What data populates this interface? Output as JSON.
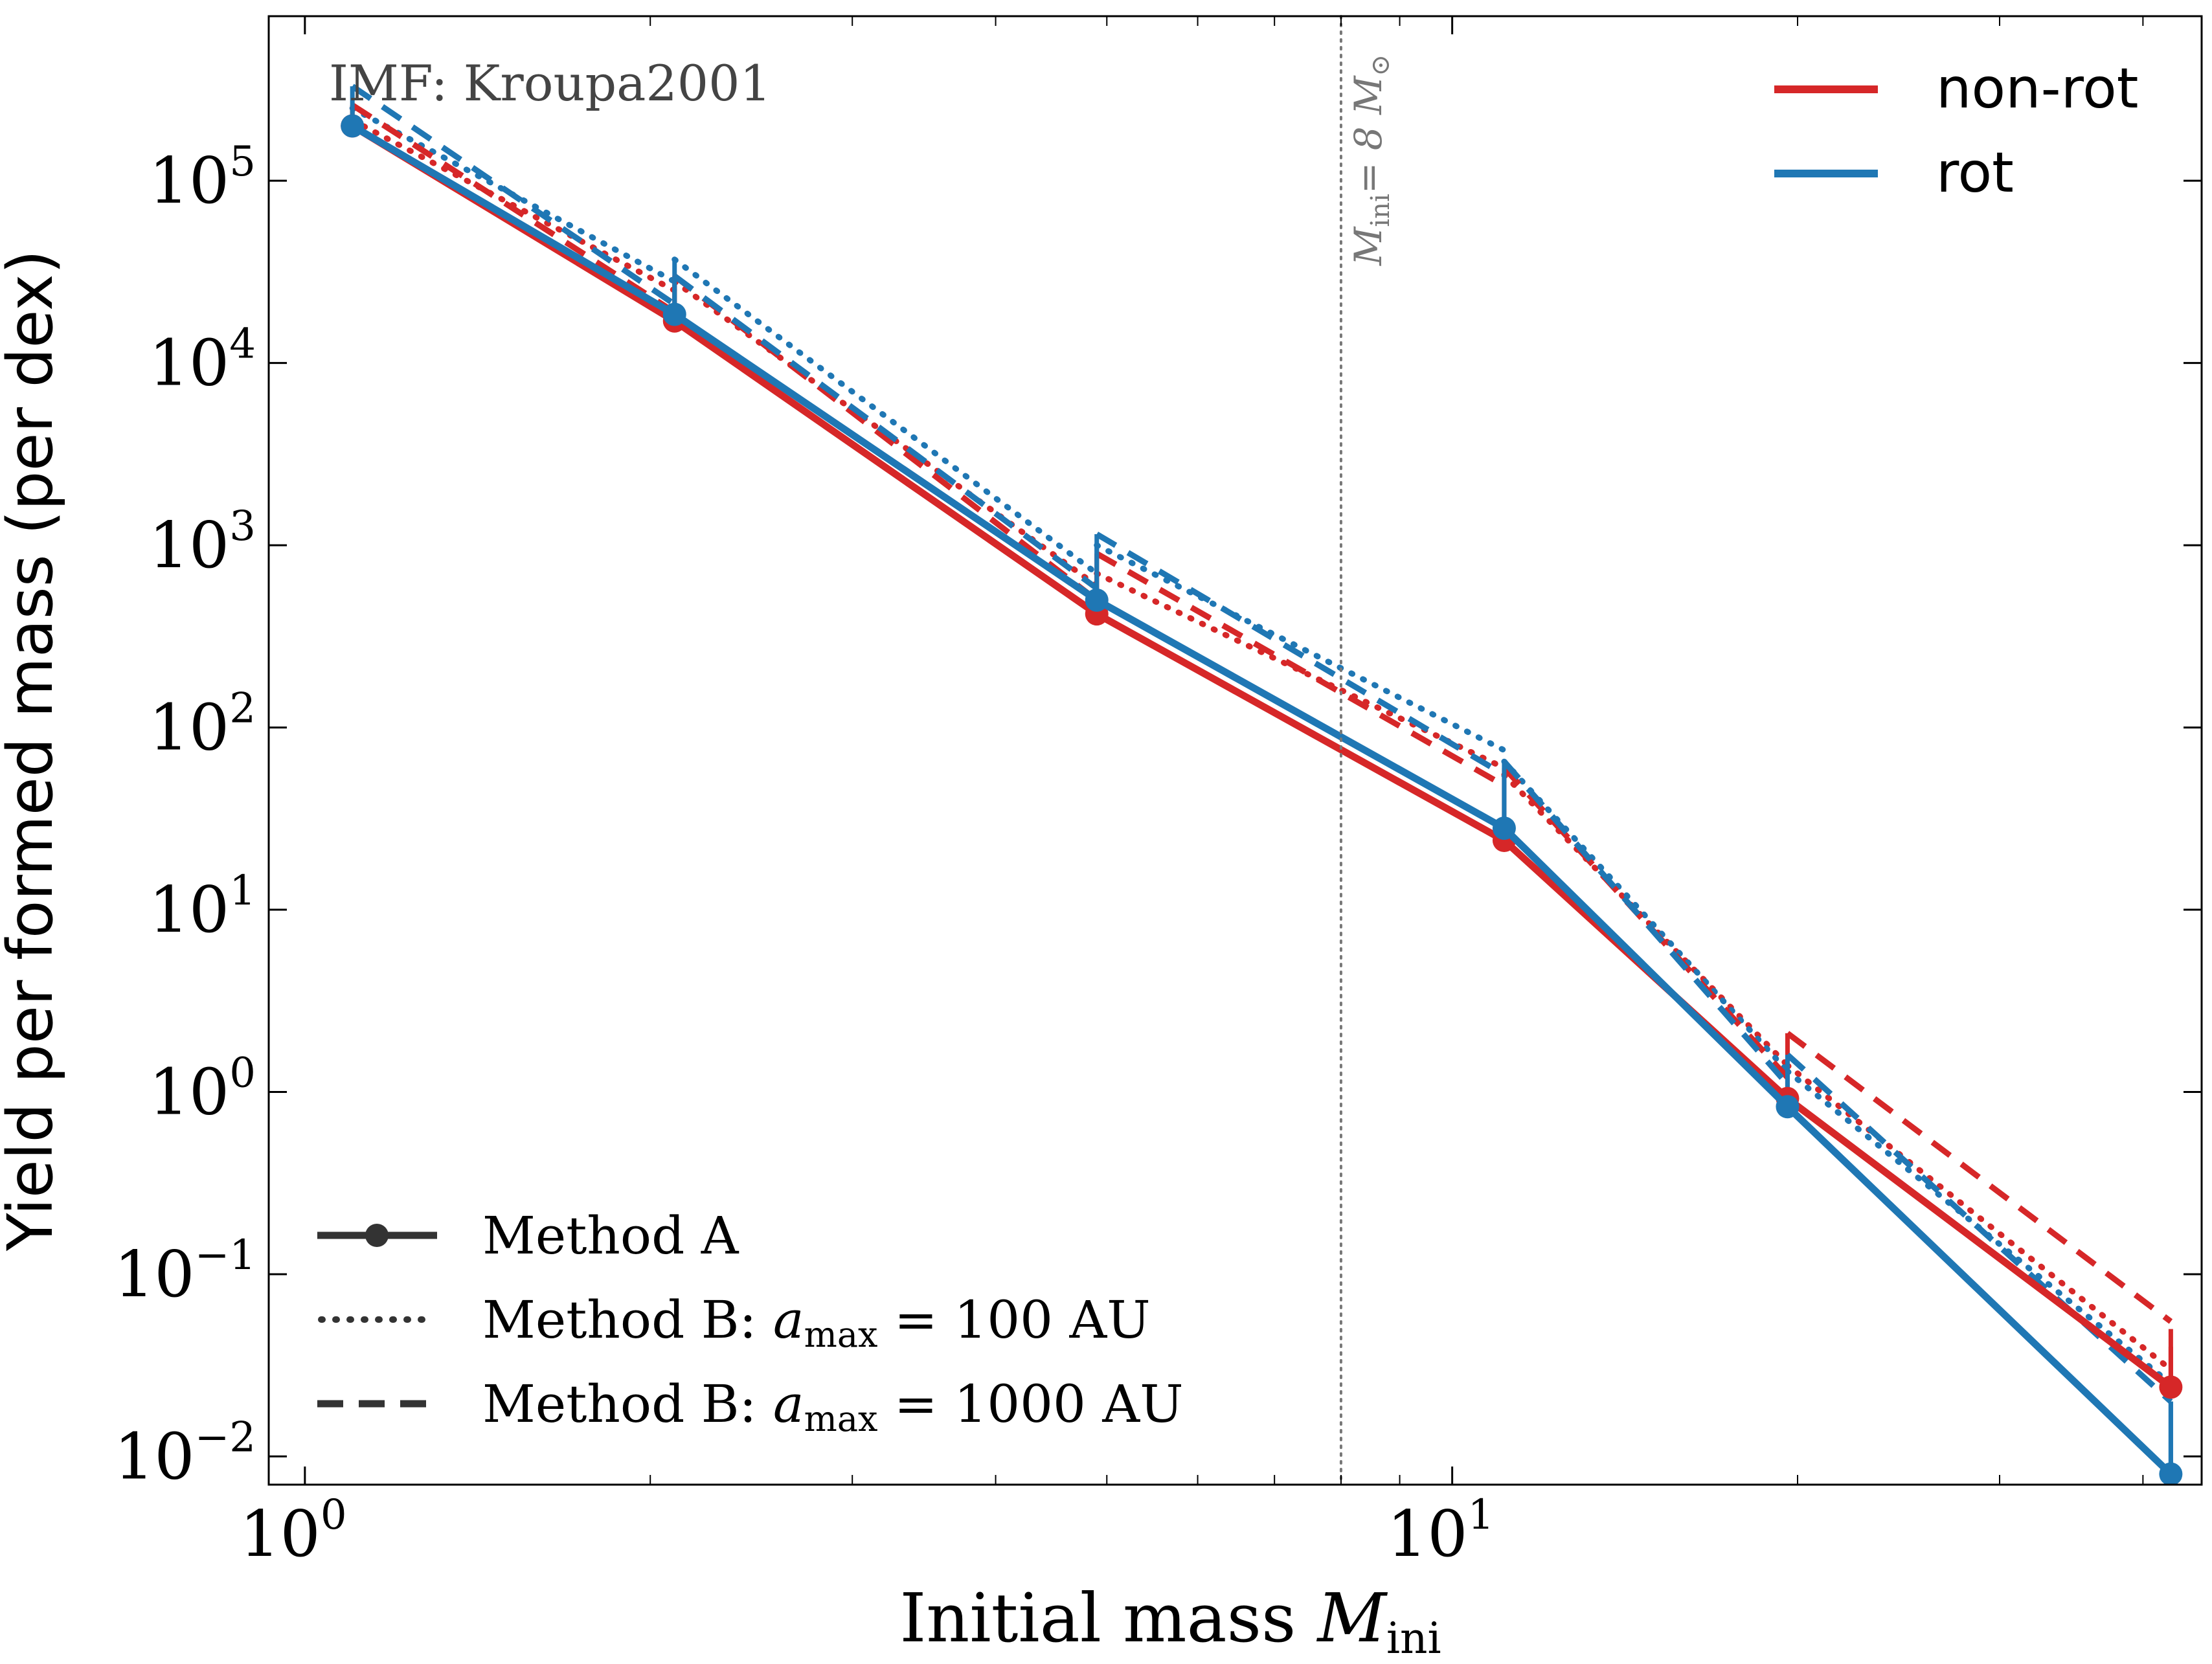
{
  "chart_data": {
    "type": "line",
    "title": "",
    "annotation": "IMF: Kroupa2001",
    "xlabel": {
      "text": "Initial mass ",
      "math": "M",
      "sub": "ini"
    },
    "ylabel": "Yield per formed mass (per dex)",
    "xscale": "log",
    "yscale": "log",
    "xlim": [
      0.93,
      45
    ],
    "ylim": [
      0.007,
      800000
    ],
    "x_ticks": [
      {
        "value": 1,
        "base": "10",
        "exp": "0"
      },
      {
        "value": 10,
        "base": "10",
        "exp": "1"
      }
    ],
    "y_ticks": [
      {
        "value": 0.01,
        "base": "10",
        "exp": "−2"
      },
      {
        "value": 0.1,
        "base": "10",
        "exp": "−1"
      },
      {
        "value": 1,
        "base": "10",
        "exp": "0"
      },
      {
        "value": 10,
        "base": "10",
        "exp": "1"
      },
      {
        "value": 100,
        "base": "10",
        "exp": "2"
      },
      {
        "value": 1000,
        "base": "10",
        "exp": "3"
      },
      {
        "value": 10000,
        "base": "10",
        "exp": "4"
      },
      {
        "value": 100000,
        "base": "10",
        "exp": "5"
      }
    ],
    "vline": {
      "x": 8,
      "label_text": "M",
      "label_sub": "ini",
      "label_rest": "= 8 M",
      "label_sun": "⊙"
    },
    "grid": false,
    "colors": {
      "non-rot": "#d62728",
      "rot": "#1f77b4",
      "vline": "#777777",
      "legend_line": "#333333"
    },
    "legend_color": {
      "placement": "top-right",
      "entries": [
        {
          "label": "non-rot",
          "color": "#d62728"
        },
        {
          "label": "rot",
          "color": "#1f77b4"
        }
      ]
    },
    "legend_style": {
      "placement": "bottom-left",
      "entries": [
        {
          "label": "Method A",
          "style": "solid-marker"
        },
        {
          "label": "Method B: ",
          "math": "a",
          "sub": "max",
          "rest": " = 100 AU",
          "style": "dotted"
        },
        {
          "label": "Method B: ",
          "math": "a",
          "sub": "max",
          "rest": " = 1000 AU",
          "style": "dashed"
        }
      ]
    },
    "x": [
      1.1,
      2.1,
      4.9,
      11.1,
      19.6,
      42.3
    ],
    "series": [
      {
        "name": "non-rot",
        "model": "non-rot",
        "method": "Method A",
        "values": [
          200000,
          17000,
          420,
          24,
          0.92,
          0.024
        ]
      },
      {
        "name": "rot",
        "model": "rot",
        "method": "Method A",
        "values": [
          200000,
          18500,
          500,
          28,
          0.83,
          0.008
        ]
      },
      {
        "name": "non-rot",
        "model": "non-rot",
        "method": "Method B: 100 AU",
        "start": [
          215000,
          28000,
          700,
          55,
          1.4,
          0.04
        ],
        "end": [
          25000,
          600,
          60,
          1.4,
          0.03
        ]
      },
      {
        "name": "rot",
        "model": "rot",
        "method": "Method B: 100 AU",
        "start": [
          250000,
          37000,
          1000,
          65,
          1.3,
          0.02
        ],
        "end": [
          28000,
          700,
          75,
          1.3,
          0.025
        ]
      },
      {
        "name": "non-rot",
        "model": "non-rot",
        "method": "Method B: 1000 AU",
        "start": [
          260000,
          30000,
          900,
          60,
          2.1,
          0.05
        ],
        "end": [
          19000,
          500,
          48,
          1.2,
          0.055
        ]
      },
      {
        "name": "rot",
        "model": "rot",
        "method": "Method B: 1000 AU",
        "start": [
          330000,
          30000,
          1150,
          65,
          1.6,
          0.02
        ],
        "end": [
          21000,
          580,
          55,
          1.1,
          0.02
        ]
      }
    ]
  }
}
